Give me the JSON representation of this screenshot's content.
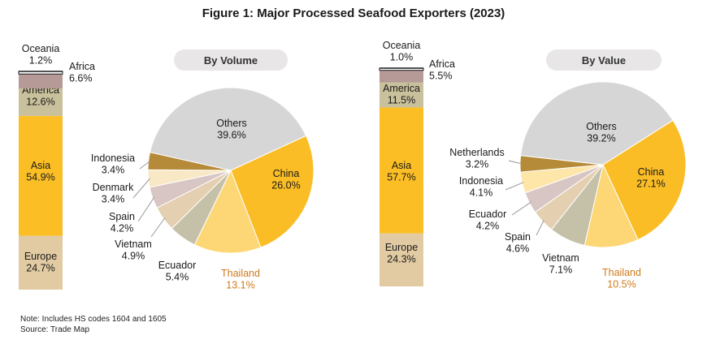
{
  "title": "Figure 1: Major Processed Seafood Exporters (2023)",
  "note": "Note: Includes HS codes 1604 and 1605",
  "source": "Source: Trade Map",
  "colors": {
    "Europe": "#e2cba3",
    "Asia": "#fbbf25",
    "America": "#c9c09c",
    "Africa": "#b59a98",
    "Oceania": "#ffffff",
    "China": "#fbbd26",
    "Thailand": "#fdd775",
    "Ecuador": "#c5c0a8",
    "Vietnam": "#e4cfb0",
    "Spain": "#d7c6c3",
    "Denmark": "#f9e8c5",
    "Netherlands": "#b58a38",
    "Indonesia": "#fde6a7",
    "Others": "#d6d6d6",
    "highlight": "#cf7a1a",
    "pill": "#e8e6e6"
  },
  "chart_data": [
    {
      "type": "bar",
      "stacked": true,
      "categories": [
        "Europe",
        "Asia",
        "America",
        "Africa",
        "Oceania"
      ],
      "values": [
        24.7,
        54.9,
        12.6,
        6.6,
        1.2
      ],
      "labels": [
        "24.7%",
        "54.9%",
        "12.6%",
        "6.6%",
        "1.2%"
      ]
    },
    {
      "type": "pie",
      "title": "By Volume",
      "categories": [
        "China",
        "Thailand",
        "Ecuador",
        "Vietnam",
        "Spain",
        "Denmark",
        "Indonesia",
        "Others"
      ],
      "values": [
        26.0,
        13.1,
        5.4,
        4.9,
        4.2,
        3.4,
        3.4,
        39.6
      ],
      "labels": [
        "26.0%",
        "13.1%",
        "5.4%",
        "4.9%",
        "4.2%",
        "3.4%",
        "3.4%",
        "39.6%"
      ],
      "color_keys": [
        "China",
        "Thailand",
        "Ecuador",
        "Vietnam",
        "Spain",
        "Denmark",
        "Netherlands",
        "Others"
      ]
    },
    {
      "type": "bar",
      "stacked": true,
      "categories": [
        "Europe",
        "Asia",
        "America",
        "Africa",
        "Oceania"
      ],
      "values": [
        24.3,
        57.7,
        11.5,
        5.5,
        1.0
      ],
      "labels": [
        "24.3%",
        "57.7%",
        "11.5%",
        "5.5%",
        "1.0%"
      ]
    },
    {
      "type": "pie",
      "title": "By Value",
      "categories": [
        "China",
        "Thailand",
        "Vietnam",
        "Spain",
        "Ecuador",
        "Indonesia",
        "Netherlands",
        "Others"
      ],
      "values": [
        27.1,
        10.5,
        7.1,
        4.6,
        4.2,
        4.1,
        3.2,
        39.2
      ],
      "labels": [
        "27.1%",
        "10.5%",
        "7.1%",
        "4.6%",
        "4.2%",
        "4.1%",
        "3.2%",
        "39.2%"
      ],
      "color_keys": [
        "China",
        "Thailand",
        "Ecuador",
        "Vietnam",
        "Spain",
        "Indonesia",
        "Netherlands",
        "Others"
      ]
    }
  ]
}
